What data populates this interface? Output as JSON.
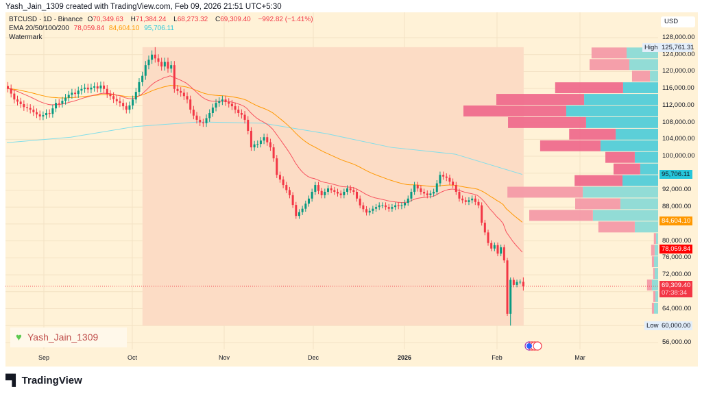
{
  "credit": "Yash_Jain_1309 created with TradingView.com, Feb 09, 2026 21:51 UTC+5:30",
  "legend": {
    "symbol": "BTCUSD · 1D · Binance",
    "o_label": "O",
    "o": "70,349.63",
    "h_label": "H",
    "h": "71,384.24",
    "l_label": "L",
    "l": "68,273.32",
    "c_label": "C",
    "c": "69,309.40",
    "change": "−992.82 (−1.41%)",
    "ema_label": "EMA 20/50/100/200",
    "ema1": "78,059.84",
    "ema2": "84,604.10",
    "ema3": "95,706.11",
    "watermark_label": "Watermark"
  },
  "currency": "USD",
  "price_ticks": [
    "128,000.00",
    "124,000.00",
    "120,000.00",
    "116,000.00",
    "112,000.00",
    "108,000.00",
    "104,000.00",
    "100,000.00",
    "92,000.00",
    "88,000.00",
    "80,000.00",
    "76,000.00",
    "72,000.00",
    "64,000.00",
    "56,000.00"
  ],
  "price_labels": {
    "high_tag": "High",
    "high": "125,761.31",
    "ema200": "95,706.11",
    "ema50": "84,604.10",
    "ema20": "78,059.84",
    "last": "69,309.40",
    "countdown": "07:38:34",
    "low_tag": "Low",
    "low": "60,000.00"
  },
  "time_labels": [
    "Sep",
    "Oct",
    "Nov",
    "Dec",
    "2026",
    "Feb",
    "Mar"
  ],
  "watermark_text": "Yash_Jain_1309",
  "brand": "TradingView",
  "colors": {
    "up": "#089981",
    "down": "#f23645",
    "ema20": "#f7525f",
    "ema50": "#ff9800",
    "ema200": "#80deea",
    "range": "#fcdcc5",
    "background": "#fff2d7",
    "vp_up": "#5ccfd8",
    "vp_down": "#ef6b8d",
    "vp_up_light": "#92dcd6",
    "vp_down_light": "#f49aa8"
  },
  "chart_data": {
    "type": "candlestick",
    "interval": "1D",
    "yrange": [
      54000,
      130000
    ],
    "price_ticks": [
      128000,
      124000,
      120000,
      116000,
      112000,
      108000,
      104000,
      100000,
      96000,
      92000,
      88000,
      84000,
      80000,
      76000,
      72000,
      68000,
      64000,
      60000,
      56000
    ],
    "closes": [
      116000,
      114800,
      113400,
      112900,
      112300,
      111600,
      111400,
      111000,
      110400,
      109900,
      109400,
      109700,
      110200,
      110000,
      111300,
      112600,
      112400,
      113100,
      113800,
      114500,
      115000,
      114700,
      115500,
      115900,
      116200,
      115800,
      116200,
      116500,
      116000,
      116700,
      115900,
      114700,
      114200,
      113500,
      113000,
      112600,
      111800,
      111000,
      112000,
      113400,
      115200,
      117500,
      119000,
      121500,
      122800,
      124000,
      123100,
      122300,
      121200,
      122300,
      120700,
      121500,
      115900,
      115400,
      115000,
      114200,
      113400,
      111000,
      109600,
      108600,
      108000,
      107800,
      109000,
      110200,
      111500,
      112600,
      113000,
      113400,
      112800,
      112400,
      111800,
      111000,
      110200,
      109800,
      108600,
      106000,
      102100,
      102800,
      102900,
      103700,
      104500,
      103300,
      102100,
      99500,
      95600,
      94500,
      93200,
      92000,
      90800,
      88500,
      85900,
      86800,
      87600,
      88800,
      90000,
      91600,
      93200,
      91800,
      90800,
      91600,
      92400,
      92000,
      91600,
      91200,
      90800,
      91600,
      92400,
      92000,
      91600,
      90000,
      88400,
      87500,
      86700,
      87100,
      87600,
      88000,
      88400,
      88400,
      88000,
      87600,
      88000,
      88400,
      88200,
      88400,
      89000,
      90000,
      91600,
      93200,
      92400,
      91600,
      91200,
      90800,
      91200,
      91600,
      93600,
      95600,
      95200,
      94900,
      94000,
      93200,
      91600,
      90000,
      89600,
      89200,
      89600,
      90000,
      89200,
      88400,
      84300,
      82000,
      79500,
      78200,
      79000,
      77000,
      78500,
      75400,
      62800,
      70800,
      69600,
      70300,
      70349.63,
      69309.4
    ],
    "last_candle": {
      "open": 70349.63,
      "high": 71384.24,
      "low": 68273.32,
      "close": 69309.4
    },
    "extremes": {
      "high": {
        "day": 46,
        "value": 125761.31
      },
      "low": {
        "day": 157,
        "value": 60000
      }
    },
    "ema200_samples": {
      "days": [
        0,
        20,
        40,
        60,
        80,
        100,
        120,
        140,
        161
      ],
      "values": [
        103200,
        104500,
        107000,
        108100,
        107800,
        105300,
        102100,
        100500,
        95706.11
      ]
    },
    "ema_last": {
      "ema20": 78059.84,
      "ema50": 84604.1,
      "ema200": 95706.11
    },
    "range_selection": {
      "from_day": 43,
      "to_day": 161
    },
    "volume_profile": {
      "top": 125761.31,
      "bottom": 60000,
      "rows": 24,
      "up": [
        16.2,
        14.8,
        4.2,
        18.0,
        38.0,
        47.2,
        37.0,
        21.8,
        29.6,
        12.0,
        9.2,
        18.3,
        38.7,
        19.4,
        33.5,
        12.0,
        1.1,
        1.8,
        2.1,
        1.8,
        3.2,
        1.4,
        2.1,
        0
      ],
      "down": [
        18.0,
        20.4,
        9.2,
        34.9,
        45.1,
        52.8,
        40.1,
        23.9,
        31.0,
        15.1,
        13.7,
        24.6,
        38.7,
        23.2,
        32.7,
        18.7,
        1.1,
        1.8,
        1.1,
        0.7,
        2.5,
        1.1,
        1.1,
        0
      ],
      "value_area_rows": [
        3,
        4,
        5,
        6,
        7,
        8,
        9,
        10,
        11
      ]
    }
  }
}
